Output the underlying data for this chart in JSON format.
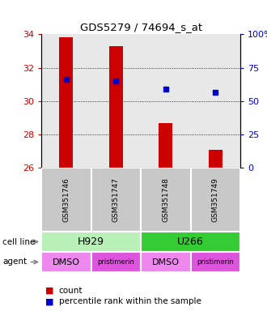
{
  "title": "GDS5279 / 74694_s_at",
  "samples": [
    "GSM351746",
    "GSM351747",
    "GSM351748",
    "GSM351749"
  ],
  "bar_bottoms": [
    26,
    26,
    26,
    26
  ],
  "bar_tops": [
    33.8,
    33.3,
    28.7,
    27.1
  ],
  "percentile_values": [
    31.3,
    31.2,
    30.7,
    30.5
  ],
  "ylim_left": [
    26,
    34
  ],
  "ylim_right": [
    0,
    100
  ],
  "yticks_left": [
    26,
    28,
    30,
    32,
    34
  ],
  "yticks_right": [
    0,
    25,
    50,
    75,
    100
  ],
  "ytick_labels_right": [
    "0",
    "25",
    "50",
    "75",
    "100%"
  ],
  "bar_color": "#cc0000",
  "dot_color": "#0000cc",
  "grid_yticks": [
    28,
    30,
    32
  ],
  "left_label_color": "#cc0000",
  "right_label_color": "#0000cc",
  "cell_line_spans": [
    [
      "H929",
      0,
      2,
      "#b8f0b8"
    ],
    [
      "U266",
      2,
      4,
      "#33cc33"
    ]
  ],
  "agent_data": [
    [
      "DMSO",
      0,
      1,
      "#ee88ee"
    ],
    [
      "pristimerin",
      1,
      2,
      "#dd55dd"
    ],
    [
      "DMSO",
      2,
      3,
      "#ee88ee"
    ],
    [
      "pristimerin",
      3,
      4,
      "#dd55dd"
    ]
  ],
  "plot_bg": "#e8e8e8",
  "sample_box_color": "#c8c8c8"
}
